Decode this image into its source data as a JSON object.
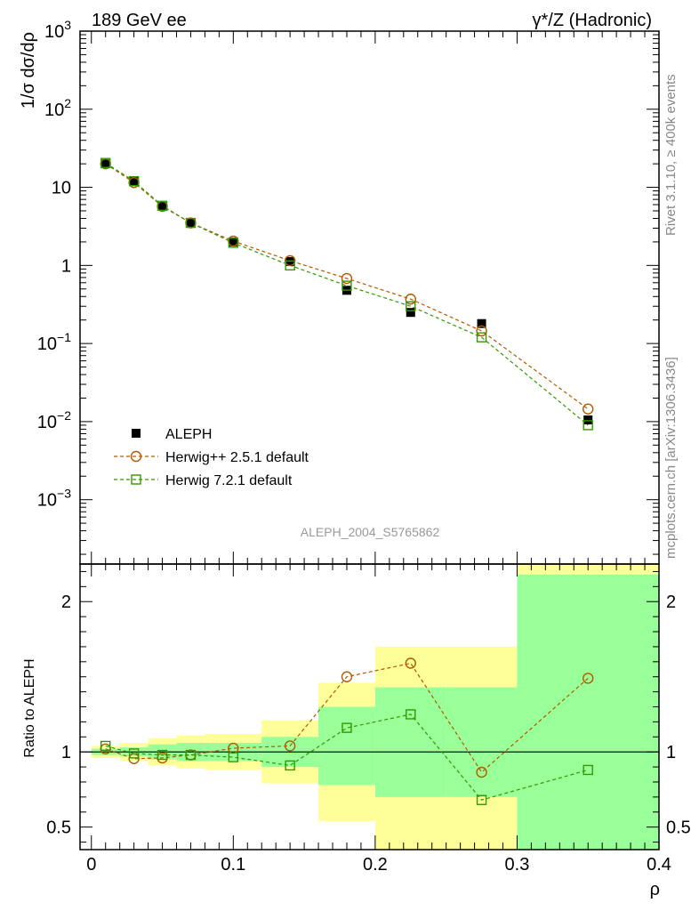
{
  "header": {
    "left": "189 GeV ee",
    "right": "γ*/Z (Hadronic)"
  },
  "side_labels": {
    "rivet": "Rivet 3.1.10, ≥ 400k events",
    "mcplots": "mcplots.cern.ch [arXiv:1306.3436]"
  },
  "watermark": "ALEPH_2004_S5765862",
  "colors": {
    "data": "#000000",
    "herwigpp": "#b35900",
    "herwig7": "#339900",
    "band_outer": "#ffff99",
    "band_inner": "#99ff99"
  },
  "chart_data": [
    {
      "type": "scatter",
      "panel": "main",
      "ylabel": "1/σ dσ/dρ",
      "yscale": "log",
      "ylim": [
        0.00015,
        1000
      ],
      "xlim": [
        -0.008,
        0.4
      ],
      "y_ticks": [
        {
          "v": 1000,
          "base": "10",
          "exp": "3"
        },
        {
          "v": 100,
          "base": "10",
          "exp": "2"
        },
        {
          "v": 10,
          "base": "10",
          "exp": ""
        },
        {
          "v": 1,
          "base": "1",
          "exp": ""
        },
        {
          "v": 0.1,
          "base": "10",
          "exp": "−1"
        },
        {
          "v": 0.01,
          "base": "10",
          "exp": "−2"
        },
        {
          "v": 0.001,
          "base": "10",
          "exp": "−3"
        }
      ],
      "legend": [
        {
          "name": "ALEPH",
          "marker": "square-filled"
        },
        {
          "name": "Herwig++ 2.5.1 default",
          "marker": "circle-open"
        },
        {
          "name": "Herwig 7.2.1 default",
          "marker": "square-open"
        }
      ],
      "legend_position": "bottom-left",
      "x": [
        0.01,
        0.03,
        0.05,
        0.07,
        0.1,
        0.14,
        0.18,
        0.225,
        0.275,
        0.35
      ],
      "series": [
        {
          "name": "ALEPH",
          "values": [
            20.0,
            12.0,
            5.8,
            3.5,
            2.0,
            1.12,
            0.48,
            0.25,
            0.18,
            0.0105
          ]
        },
        {
          "name": "Herwig++ 2.5.1 default",
          "values": [
            20.0,
            11.5,
            5.7,
            3.5,
            2.05,
            1.15,
            0.68,
            0.37,
            0.145,
            0.0145
          ]
        },
        {
          "name": "Herwig 7.2.1 default",
          "values": [
            20.5,
            12.0,
            5.8,
            3.5,
            1.95,
            1.0,
            0.55,
            0.3,
            0.12,
            0.009
          ]
        }
      ]
    },
    {
      "type": "scatter",
      "panel": "ratio",
      "ylabel": "Ratio to ALEPH",
      "xlabel": "ρ",
      "ylim": [
        0.35,
        2.25
      ],
      "xlim": [
        -0.008,
        0.4
      ],
      "y_ticks": [
        {
          "v": 0.5,
          "label": "0.5"
        },
        {
          "v": 1,
          "label": "1"
        },
        {
          "v": 2,
          "label": "2"
        }
      ],
      "x_ticks": [
        {
          "v": 0,
          "label": "0"
        },
        {
          "v": 0.1,
          "label": "0.1"
        },
        {
          "v": 0.2,
          "label": "0.2"
        },
        {
          "v": 0.3,
          "label": "0.3"
        },
        {
          "v": 0.4,
          "label": "0.4"
        }
      ],
      "bin_edges": [
        0.0,
        0.02,
        0.04,
        0.06,
        0.08,
        0.12,
        0.16,
        0.2,
        0.25,
        0.3,
        0.4
      ],
      "band_outer": [
        [
          0.96,
          1.04
        ],
        [
          0.94,
          1.06
        ],
        [
          0.91,
          1.09
        ],
        [
          0.89,
          1.11
        ],
        [
          0.88,
          1.12
        ],
        [
          0.79,
          1.21
        ],
        [
          0.54,
          1.46
        ],
        [
          0.3,
          1.7
        ],
        [
          0.3,
          1.7
        ],
        [
          0.3,
          2.3
        ]
      ],
      "band_inner": [
        [
          0.98,
          1.02
        ],
        [
          0.97,
          1.03
        ],
        [
          0.95,
          1.05
        ],
        [
          0.94,
          1.06
        ],
        [
          0.94,
          1.06
        ],
        [
          0.9,
          1.1
        ],
        [
          0.78,
          1.3
        ],
        [
          0.7,
          1.43
        ],
        [
          0.7,
          1.43
        ],
        [
          0.25,
          2.18
        ]
      ],
      "x": [
        0.01,
        0.03,
        0.05,
        0.07,
        0.1,
        0.14,
        0.18,
        0.225,
        0.275,
        0.35
      ],
      "series": [
        {
          "name": "Herwig++ 2.5.1 default",
          "values": [
            1.02,
            0.955,
            0.96,
            0.98,
            1.025,
            1.04,
            1.5,
            1.59,
            0.865,
            1.49
          ]
        },
        {
          "name": "Herwig 7.2.1 default",
          "values": [
            1.04,
            0.99,
            0.98,
            0.98,
            0.965,
            0.91,
            1.16,
            1.25,
            0.68,
            0.88
          ]
        }
      ]
    }
  ]
}
